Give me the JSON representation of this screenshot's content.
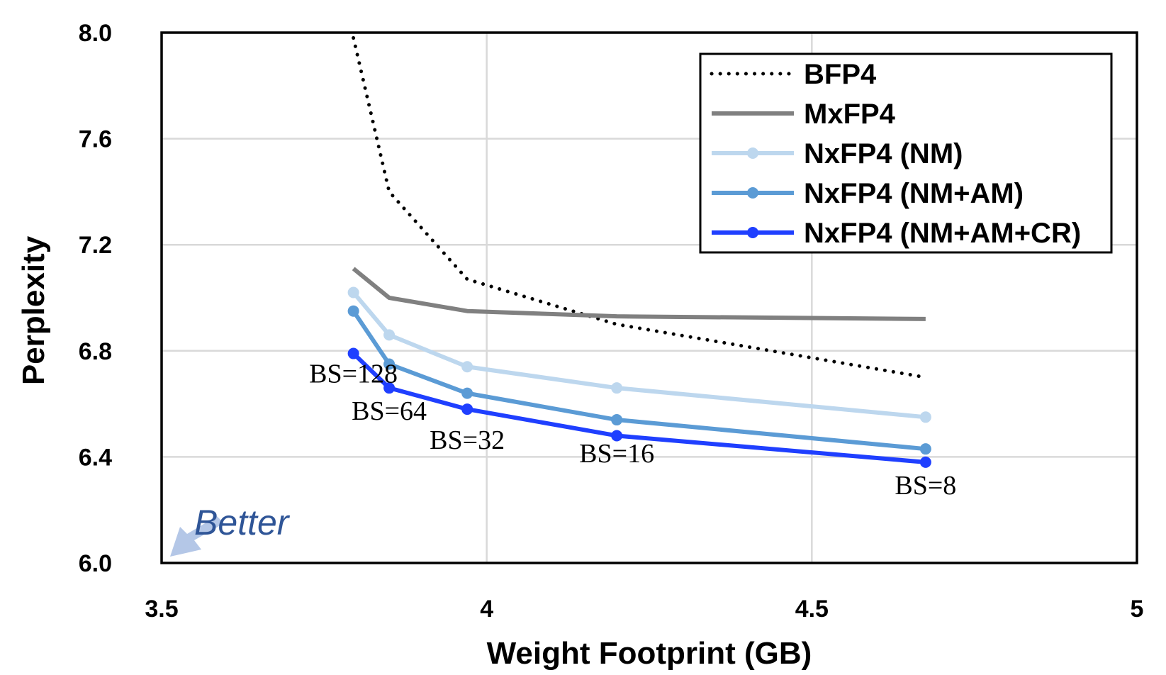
{
  "chart_data": {
    "type": "line",
    "xlabel": "Weight Footprint (GB)",
    "ylabel": "Perplexity",
    "xlim": [
      3.5,
      5
    ],
    "ylim": [
      6.0,
      8.0
    ],
    "x_ticks": [
      "3.5",
      "4",
      "4.5",
      "5"
    ],
    "y_ticks": [
      "6.0",
      "6.4",
      "6.8",
      "7.2",
      "7.6",
      "8.0"
    ],
    "grid": true,
    "legend_position": "top-right",
    "series": [
      {
        "name": "BFP4",
        "style": "dotted",
        "markers": false,
        "color": "#000000",
        "points": [
          [
            3.795,
            7.98
          ],
          [
            3.85,
            7.4
          ],
          [
            3.97,
            7.07
          ],
          [
            4.2,
            6.9
          ],
          [
            4.675,
            6.7
          ]
        ]
      },
      {
        "name": "MxFP4",
        "style": "solid",
        "markers": false,
        "color": "#808080",
        "points": [
          [
            3.795,
            7.11
          ],
          [
            3.85,
            7.0
          ],
          [
            3.97,
            6.95
          ],
          [
            4.2,
            6.93
          ],
          [
            4.675,
            6.92
          ]
        ]
      },
      {
        "name": "NxFP4 (NM)",
        "style": "solid",
        "markers": true,
        "color": "#BDD7EE",
        "points": [
          [
            3.795,
            7.02
          ],
          [
            3.85,
            6.86
          ],
          [
            3.97,
            6.74
          ],
          [
            4.2,
            6.66
          ],
          [
            4.675,
            6.55
          ]
        ]
      },
      {
        "name": "NxFP4 (NM+AM)",
        "style": "solid",
        "markers": true,
        "color": "#5B9BD5",
        "points": [
          [
            3.795,
            6.95
          ],
          [
            3.85,
            6.75
          ],
          [
            3.97,
            6.64
          ],
          [
            4.2,
            6.54
          ],
          [
            4.675,
            6.43
          ]
        ]
      },
      {
        "name": "NxFP4 (NM+AM+CR)",
        "style": "solid",
        "markers": true,
        "color": "#1F3FFF",
        "points": [
          [
            3.795,
            6.79
          ],
          [
            3.85,
            6.66
          ],
          [
            3.97,
            6.58
          ],
          [
            4.2,
            6.48
          ],
          [
            4.675,
            6.38
          ]
        ]
      }
    ],
    "annotations": [
      {
        "text": "BS=128",
        "x": 3.795,
        "y": 6.68
      },
      {
        "text": "BS=64",
        "x": 3.85,
        "y": 6.54
      },
      {
        "text": "BS=32",
        "x": 3.97,
        "y": 6.43
      },
      {
        "text": "BS=16",
        "x": 4.2,
        "y": 6.38
      },
      {
        "text": "BS=8",
        "x": 4.675,
        "y": 6.26
      }
    ],
    "better_label": "Better",
    "better_color": "#2F5597",
    "arrow_color": "#B4C7E7"
  }
}
